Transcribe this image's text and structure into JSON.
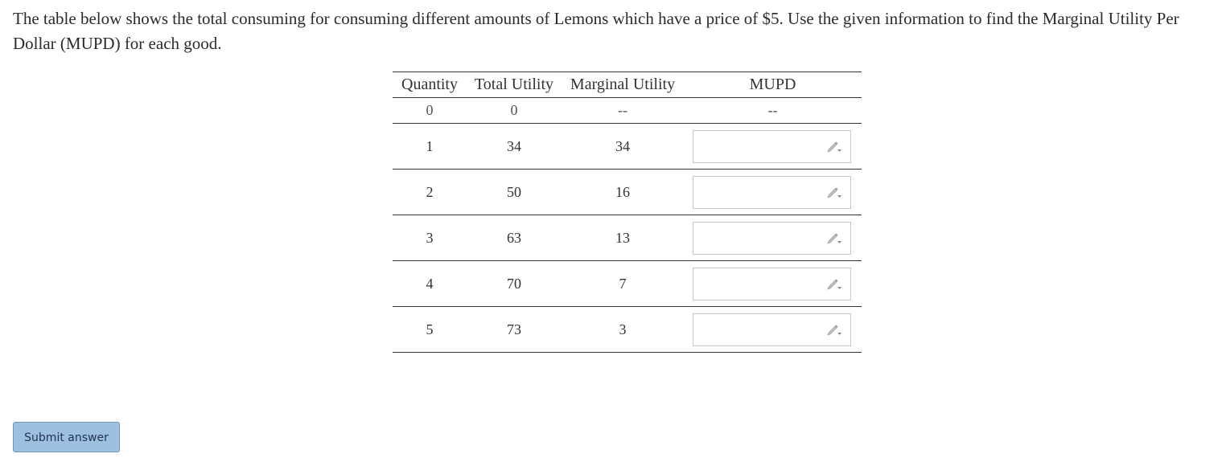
{
  "prompt": {
    "text": "The table below shows the total consuming for consuming different amounts of Lemons which have a price of $5. Use the given information to find the Marginal Utility Per Dollar (MUPD) for each good."
  },
  "table": {
    "headers": [
      "Quantity",
      "Total Utility",
      "Marginal Utility",
      "MUPD"
    ],
    "first_row": {
      "quantity": "0",
      "total_utility": "0",
      "marginal_utility": "--",
      "mupd": "--"
    },
    "rows": [
      {
        "quantity": "1",
        "total_utility": "34",
        "marginal_utility": "34",
        "mupd_value": ""
      },
      {
        "quantity": "2",
        "total_utility": "50",
        "marginal_utility": "16",
        "mupd_value": ""
      },
      {
        "quantity": "3",
        "total_utility": "63",
        "marginal_utility": "13",
        "mupd_value": ""
      },
      {
        "quantity": "4",
        "total_utility": "70",
        "marginal_utility": "7",
        "mupd_value": ""
      },
      {
        "quantity": "5",
        "total_utility": "73",
        "marginal_utility": "3",
        "mupd_value": ""
      }
    ],
    "input_icon": "pencil-dropdown-icon"
  },
  "submit": {
    "label": "Submit answer"
  },
  "colors": {
    "button_bg": "#9dbfe0",
    "button_border": "#6f95bb",
    "rule": "#333333",
    "input_border": "#c8c8c8"
  }
}
